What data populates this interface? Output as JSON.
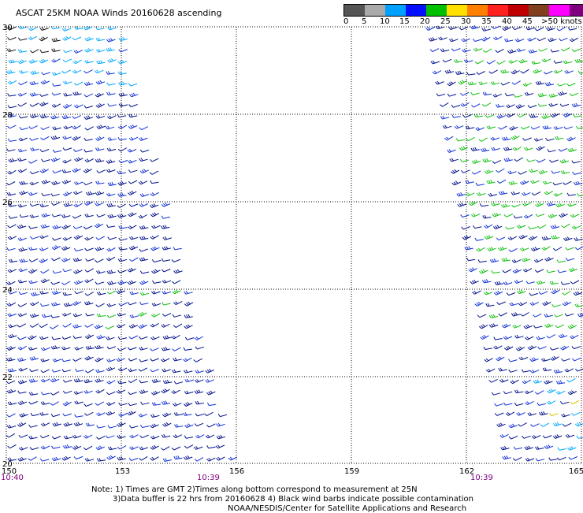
{
  "header": {
    "title": "ASCAT 25KM NOAA Winds 20160628 ascending"
  },
  "legend": {
    "segments": [
      {
        "color": "#555555"
      },
      {
        "color": "#aaaaaa"
      },
      {
        "color": "#00a0ff"
      },
      {
        "color": "#0010ff"
      },
      {
        "color": "#00c000"
      },
      {
        "color": "#ffe000"
      },
      {
        "color": "#ff8000"
      },
      {
        "color": "#ff2020"
      },
      {
        "color": "#c00000"
      },
      {
        "color": "#804020"
      },
      {
        "color": "#ff00ff"
      },
      {
        "color": "#800080"
      }
    ],
    "ticks": [
      "0",
      "5",
      "10",
      "15",
      "20",
      "25",
      "30",
      "35",
      "40",
      "45",
      ">50 knots"
    ]
  },
  "map": {
    "lon_ticks": [
      "150",
      "153",
      "156",
      "159",
      "162",
      "165"
    ],
    "lat_ticks": [
      "30",
      "28",
      "26",
      "24",
      "22",
      "20"
    ],
    "pass_times": [
      "10:40",
      "10:39",
      "10:39"
    ],
    "time_color": "#800080"
  },
  "notes": {
    "line1": "Note: 1) Times are GMT 2)Times along bottom correspond to measurement at 25N",
    "line2": "3)Data buffer is 22 hrs from 20160628 4) Black wind barbs indicate possible contamination",
    "line3": "NOAA/NESDIS/Center for Satellite Applications and Research"
  }
}
